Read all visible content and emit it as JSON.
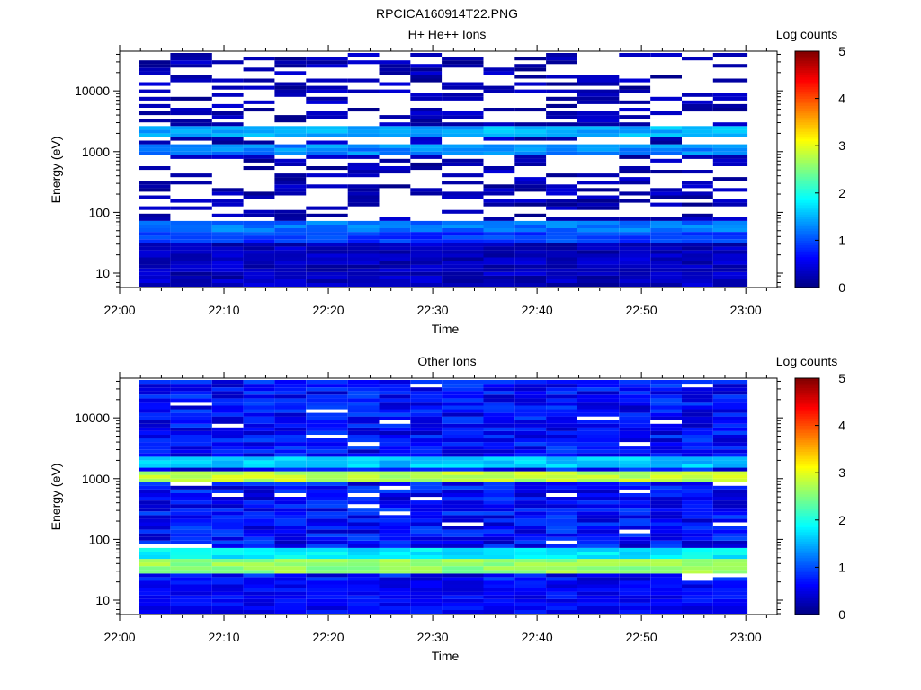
{
  "figure_title": "RPCICA160914T22.PNG",
  "chart_data": [
    {
      "type": "heatmap",
      "title": "H+ He++ Ions",
      "xlabel": "Time",
      "ylabel": "Energy (eV)",
      "y_scale": "log",
      "ylim": [
        5.8,
        45000
      ],
      "xlim": [
        "22:00",
        "23:03"
      ],
      "x_ticks": [
        "22:00",
        "22:10",
        "22:20",
        "22:30",
        "22:40",
        "22:50",
        "23:00"
      ],
      "y_ticks": [
        "10",
        "100",
        "1000",
        "10000"
      ],
      "colorbar": {
        "label": "Log counts",
        "range": [
          0,
          5
        ],
        "ticks": [
          "0",
          "1",
          "2",
          "3",
          "4",
          "5"
        ]
      },
      "time_bin_start": [
        "22:01",
        "22:04",
        "22:08",
        "22:11",
        "22:14",
        "22:17",
        "22:21",
        "22:24",
        "22:27",
        "22:30",
        "22:34",
        "22:37",
        "22:40",
        "22:43",
        "22:47",
        "22:50",
        "22:53",
        "22:56"
      ],
      "bands": [
        {
          "energy_range_eV": [
            1700,
            2600
          ],
          "log_counts": 1.5
        },
        {
          "energy_range_eV": [
            900,
            1250
          ],
          "log_counts": 1.3
        },
        {
          "energy_range_eV": [
            48,
            70
          ],
          "log_counts": 1.2
        },
        {
          "energy_range_eV": [
            33,
            45
          ],
          "log_counts": 0.9
        },
        {
          "energy_range_eV": [
            6,
            30
          ],
          "log_counts": 0.3
        }
      ]
    },
    {
      "type": "heatmap",
      "title": "Other Ions",
      "xlabel": "Time",
      "ylabel": "Energy (eV)",
      "y_scale": "log",
      "ylim": [
        5.8,
        45000
      ],
      "xlim": [
        "22:00",
        "23:03"
      ],
      "x_ticks": [
        "22:00",
        "22:10",
        "22:20",
        "22:30",
        "22:40",
        "22:50",
        "23:00"
      ],
      "y_ticks": [
        "10",
        "100",
        "1000",
        "10000"
      ],
      "colorbar": {
        "label": "Log counts",
        "range": [
          0,
          5
        ],
        "ticks": [
          "0",
          "1",
          "2",
          "3",
          "4",
          "5"
        ]
      },
      "time_bin_start": [
        "22:01",
        "22:04",
        "22:08",
        "22:11",
        "22:14",
        "22:17",
        "22:21",
        "22:24",
        "22:27",
        "22:30",
        "22:34",
        "22:37",
        "22:40",
        "22:43",
        "22:47",
        "22:50",
        "22:53",
        "22:56"
      ],
      "bands": [
        {
          "energy_range_eV": [
            1600,
            2300
          ],
          "log_counts": 1.6
        },
        {
          "energy_range_eV": [
            850,
            1250
          ],
          "log_counts": 2.8
        },
        {
          "energy_range_eV": [
            48,
            70
          ],
          "log_counts": 1.8
        },
        {
          "energy_range_eV": [
            28,
            45
          ],
          "log_counts": 2.6
        },
        {
          "energy_range_eV": [
            6,
            20
          ],
          "log_counts": 0.6
        }
      ]
    }
  ]
}
